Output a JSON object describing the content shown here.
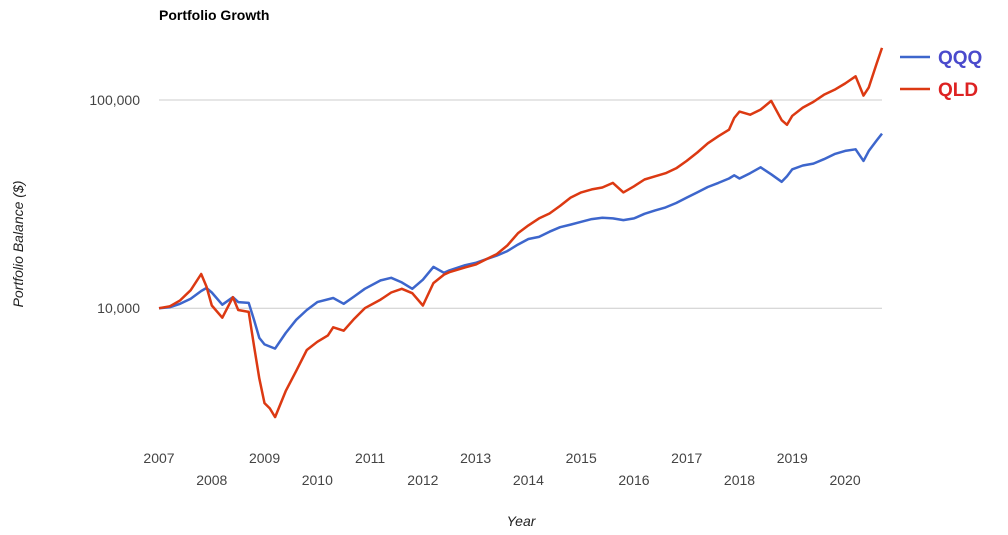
{
  "chart_data": {
    "type": "line",
    "title": "Portfolio Growth",
    "xlabel": "Year",
    "ylabel": "Portfolio Balance ($)",
    "y_scale": "log",
    "ylim": [
      2600,
      190000
    ],
    "xlim": [
      2007.0,
      2020.7
    ],
    "y_ticks": [
      {
        "value": 10000,
        "label": "10,000"
      },
      {
        "value": 100000,
        "label": "100,000"
      }
    ],
    "x_ticks": [
      {
        "value": 2007,
        "label": "2007"
      },
      {
        "value": 2008,
        "label": "2008"
      },
      {
        "value": 2009,
        "label": "2009"
      },
      {
        "value": 2010,
        "label": "2010"
      },
      {
        "value": 2011,
        "label": "2011"
      },
      {
        "value": 2012,
        "label": "2012"
      },
      {
        "value": 2013,
        "label": "2013"
      },
      {
        "value": 2014,
        "label": "2014"
      },
      {
        "value": 2015,
        "label": "2015"
      },
      {
        "value": 2016,
        "label": "2016"
      },
      {
        "value": 2017,
        "label": "2017"
      },
      {
        "value": 2018,
        "label": "2018"
      },
      {
        "value": 2019,
        "label": "2019"
      },
      {
        "value": 2020,
        "label": "2020"
      }
    ],
    "grid": "horizontal",
    "legend_position": "top-right",
    "series": [
      {
        "name": "QQQ",
        "color": "#3d66cc",
        "x": [
          2007.0,
          2007.2,
          2007.4,
          2007.6,
          2007.8,
          2007.9,
          2008.0,
          2008.2,
          2008.4,
          2008.5,
          2008.7,
          2008.8,
          2008.9,
          2009.0,
          2009.2,
          2009.4,
          2009.6,
          2009.8,
          2010.0,
          2010.3,
          2010.5,
          2010.7,
          2010.9,
          2011.2,
          2011.4,
          2011.6,
          2011.8,
          2012.0,
          2012.2,
          2012.4,
          2012.5,
          2012.8,
          2013.0,
          2013.2,
          2013.4,
          2013.6,
          2013.8,
          2014.0,
          2014.2,
          2014.4,
          2014.6,
          2014.8,
          2015.0,
          2015.2,
          2015.4,
          2015.6,
          2015.8,
          2016.0,
          2016.2,
          2016.4,
          2016.6,
          2016.8,
          2017.0,
          2017.2,
          2017.4,
          2017.6,
          2017.8,
          2017.9,
          2018.0,
          2018.2,
          2018.4,
          2018.6,
          2018.8,
          2018.9,
          2019.0,
          2019.2,
          2019.4,
          2019.6,
          2019.8,
          2020.0,
          2020.2,
          2020.35,
          2020.45,
          2020.6,
          2020.7
        ],
        "values": [
          10000,
          10100,
          10500,
          11100,
          12100,
          12500,
          11900,
          10400,
          11300,
          10700,
          10600,
          8800,
          7200,
          6700,
          6400,
          7600,
          8800,
          9800,
          10700,
          11200,
          10500,
          11400,
          12400,
          13600,
          14000,
          13300,
          12400,
          13700,
          15800,
          14800,
          15200,
          16100,
          16500,
          17200,
          17900,
          18800,
          20200,
          21500,
          22000,
          23300,
          24500,
          25200,
          26000,
          26800,
          27200,
          27000,
          26500,
          27000,
          28400,
          29500,
          30500,
          32000,
          34000,
          36000,
          38200,
          40000,
          42000,
          43500,
          42000,
          44500,
          47500,
          44000,
          40500,
          43000,
          46500,
          48500,
          49500,
          52000,
          55000,
          57000,
          58000,
          51000,
          57000,
          64000,
          69000
        ]
      },
      {
        "name": "QLD",
        "color": "#dc3912",
        "x": [
          2007.0,
          2007.2,
          2007.4,
          2007.6,
          2007.8,
          2007.9,
          2008.0,
          2008.2,
          2008.4,
          2008.5,
          2008.7,
          2008.8,
          2008.9,
          2009.0,
          2009.1,
          2009.2,
          2009.4,
          2009.6,
          2009.8,
          2010.0,
          2010.2,
          2010.3,
          2010.5,
          2010.7,
          2010.9,
          2011.2,
          2011.4,
          2011.6,
          2011.8,
          2012.0,
          2012.2,
          2012.4,
          2012.5,
          2012.8,
          2013.0,
          2013.2,
          2013.4,
          2013.6,
          2013.8,
          2014.0,
          2014.2,
          2014.4,
          2014.6,
          2014.8,
          2015.0,
          2015.2,
          2015.4,
          2015.6,
          2015.8,
          2016.0,
          2016.2,
          2016.4,
          2016.6,
          2016.8,
          2017.0,
          2017.2,
          2017.4,
          2017.6,
          2017.8,
          2017.9,
          2018.0,
          2018.2,
          2018.4,
          2018.6,
          2018.8,
          2018.9,
          2019.0,
          2019.2,
          2019.4,
          2019.6,
          2019.8,
          2020.0,
          2020.2,
          2020.35,
          2020.45,
          2020.6,
          2020.7
        ],
        "values": [
          10000,
          10200,
          10900,
          12200,
          14600,
          12700,
          10300,
          9000,
          11300,
          9800,
          9600,
          6600,
          4600,
          3500,
          3300,
          3000,
          4000,
          5000,
          6300,
          6900,
          7400,
          8100,
          7800,
          8900,
          10000,
          11000,
          11900,
          12400,
          11800,
          10300,
          13200,
          14500,
          14900,
          15700,
          16200,
          17200,
          18200,
          20000,
          22900,
          25000,
          27000,
          28500,
          31000,
          34000,
          36000,
          37200,
          38000,
          40000,
          36000,
          38500,
          41500,
          43000,
          44500,
          47000,
          51000,
          56000,
          62000,
          67000,
          72000,
          82000,
          88000,
          85000,
          90000,
          99000,
          80000,
          76000,
          84000,
          92000,
          98000,
          106000,
          112000,
          120000,
          130000,
          105000,
          115000,
          150000,
          178000
        ]
      }
    ]
  }
}
